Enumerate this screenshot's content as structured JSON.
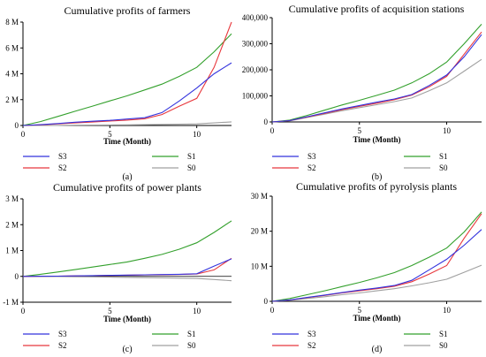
{
  "chart_data": [
    {
      "type": "line",
      "title": "Cumulative profits of farmers",
      "xlabel": "Time (Month)",
      "ylabel": "",
      "xlim": [
        0,
        12
      ],
      "ylim": [
        0,
        8000000
      ],
      "xticks": [
        0,
        5,
        10
      ],
      "xtick_labels": [
        "0",
        "5",
        "10"
      ],
      "yticks": [
        0,
        2000000,
        4000000,
        6000000,
        8000000
      ],
      "ytick_labels": [
        "0",
        "2 M",
        "4 M",
        "6 M",
        "8 M"
      ],
      "x": [
        0,
        1,
        2,
        3,
        4,
        5,
        6,
        7,
        8,
        9,
        10,
        11,
        12
      ],
      "series": [
        {
          "name": "S3",
          "color": "#3333dd",
          "values": [
            0,
            60000,
            150000,
            250000,
            330000,
            400000,
            500000,
            600000,
            1000000,
            1900000,
            2900000,
            4000000,
            4850000
          ]
        },
        {
          "name": "S2",
          "color": "#e8383d",
          "values": [
            0,
            50000,
            120000,
            200000,
            270000,
            350000,
            420000,
            520000,
            850000,
            1500000,
            2100000,
            4500000,
            8000000
          ]
        },
        {
          "name": "S1",
          "color": "#33a02c",
          "values": [
            0,
            300000,
            700000,
            1100000,
            1500000,
            1900000,
            2300000,
            2750000,
            3200000,
            3800000,
            4500000,
            5700000,
            7100000
          ]
        },
        {
          "name": "S0",
          "color": "#a0a0a0",
          "values": [
            0,
            5000,
            10000,
            20000,
            30000,
            40000,
            50000,
            60000,
            80000,
            100000,
            120000,
            200000,
            280000
          ]
        }
      ],
      "caption": "(a)",
      "legend_position": "below"
    },
    {
      "type": "line",
      "title": "Cumulative profits of acquisition stations",
      "xlabel": "Time (Month)",
      "ylabel": "",
      "xlim": [
        0,
        12
      ],
      "ylim": [
        0,
        400000
      ],
      "xticks": [
        0,
        5,
        10
      ],
      "xtick_labels": [
        "0",
        "5",
        "10"
      ],
      "yticks": [
        0,
        100000,
        200000,
        300000,
        400000
      ],
      "ytick_labels": [
        "0",
        "100,000",
        "200,000",
        "300,000",
        "400,000"
      ],
      "x": [
        0,
        1,
        2,
        3,
        4,
        5,
        6,
        7,
        8,
        9,
        10,
        11,
        12
      ],
      "series": [
        {
          "name": "S3",
          "color": "#3333dd",
          "values": [
            0,
            5000,
            20000,
            35000,
            50000,
            63000,
            76000,
            88000,
            105000,
            140000,
            180000,
            250000,
            335000
          ]
        },
        {
          "name": "S2",
          "color": "#e8383d",
          "values": [
            0,
            5000,
            19000,
            33000,
            47000,
            60000,
            72000,
            85000,
            103000,
            135000,
            175000,
            260000,
            345000
          ]
        },
        {
          "name": "S1",
          "color": "#33a02c",
          "values": [
            0,
            7000,
            25000,
            45000,
            65000,
            83000,
            102000,
            122000,
            150000,
            185000,
            230000,
            300000,
            375000
          ]
        },
        {
          "name": "S0",
          "color": "#a0a0a0",
          "values": [
            0,
            4000,
            17000,
            30000,
            43000,
            55000,
            66000,
            78000,
            92000,
            120000,
            150000,
            195000,
            240000
          ]
        }
      ],
      "caption": "(b)",
      "legend_position": "below"
    },
    {
      "type": "line",
      "title": "Cumulative profits of power plants",
      "xlabel": "Time (Month)",
      "ylabel": "",
      "xlim": [
        0,
        12
      ],
      "ylim": [
        -1000000,
        3000000
      ],
      "xticks": [
        0,
        5,
        10
      ],
      "xtick_labels": [
        "0",
        "5",
        "10"
      ],
      "yticks": [
        -1000000,
        0,
        1000000,
        2000000,
        3000000
      ],
      "ytick_labels": [
        "-1 M",
        "0",
        "1 M",
        "2 M",
        "3 M"
      ],
      "x": [
        0,
        1,
        2,
        3,
        4,
        5,
        6,
        7,
        8,
        9,
        10,
        11,
        12
      ],
      "series": [
        {
          "name": "S3",
          "color": "#3333dd",
          "values": [
            0,
            5000,
            10000,
            20000,
            30000,
            40000,
            50000,
            60000,
            70000,
            80000,
            100000,
            400000,
            680000
          ]
        },
        {
          "name": "S2",
          "color": "#e8383d",
          "values": [
            0,
            4000,
            9000,
            18000,
            27000,
            35000,
            45000,
            55000,
            65000,
            75000,
            90000,
            250000,
            700000
          ]
        },
        {
          "name": "S1",
          "color": "#33a02c",
          "values": [
            0,
            80000,
            170000,
            260000,
            360000,
            460000,
            560000,
            700000,
            850000,
            1050000,
            1300000,
            1700000,
            2150000
          ]
        },
        {
          "name": "S0",
          "color": "#a0a0a0",
          "values": [
            0,
            -5000,
            -10000,
            -15000,
            -20000,
            -30000,
            -40000,
            -50000,
            -60000,
            -70000,
            -80000,
            -120000,
            -170000
          ]
        }
      ],
      "caption": "(c)",
      "legend_position": "below"
    },
    {
      "type": "line",
      "title": "Cumulative profits of pyrolysis plants",
      "xlabel": "Time (Month)",
      "ylabel": "",
      "xlim": [
        0,
        12
      ],
      "ylim": [
        0,
        30000000
      ],
      "xticks": [
        0,
        5,
        10
      ],
      "xtick_labels": [
        "0",
        "5",
        "10"
      ],
      "yticks": [
        0,
        10000000,
        20000000,
        30000000
      ],
      "ytick_labels": [
        "0",
        "10 M",
        "20 M",
        "30 M"
      ],
      "x": [
        0,
        1,
        2,
        3,
        4,
        5,
        6,
        7,
        8,
        9,
        10,
        11,
        12
      ],
      "series": [
        {
          "name": "S3",
          "color": "#3333dd",
          "values": [
            0,
            400000,
            1100000,
            1800000,
            2500000,
            3200000,
            3800000,
            4500000,
            6000000,
            9000000,
            12000000,
            16000000,
            20500000
          ]
        },
        {
          "name": "S2",
          "color": "#e8383d",
          "values": [
            0,
            380000,
            1050000,
            1700000,
            2400000,
            3000000,
            3600000,
            4300000,
            5600000,
            7800000,
            10200000,
            18000000,
            25000000
          ]
        },
        {
          "name": "S1",
          "color": "#33a02c",
          "values": [
            0,
            800000,
            1900000,
            3000000,
            4200000,
            5400000,
            6700000,
            8200000,
            10200000,
            12600000,
            15200000,
            19800000,
            25500000
          ]
        },
        {
          "name": "S0",
          "color": "#a0a0a0",
          "values": [
            0,
            300000,
            800000,
            1300000,
            1900000,
            2400000,
            3000000,
            3600000,
            4400000,
            5300000,
            6300000,
            8300000,
            10300000
          ]
        }
      ],
      "caption": "(d)",
      "legend_position": "below"
    }
  ]
}
